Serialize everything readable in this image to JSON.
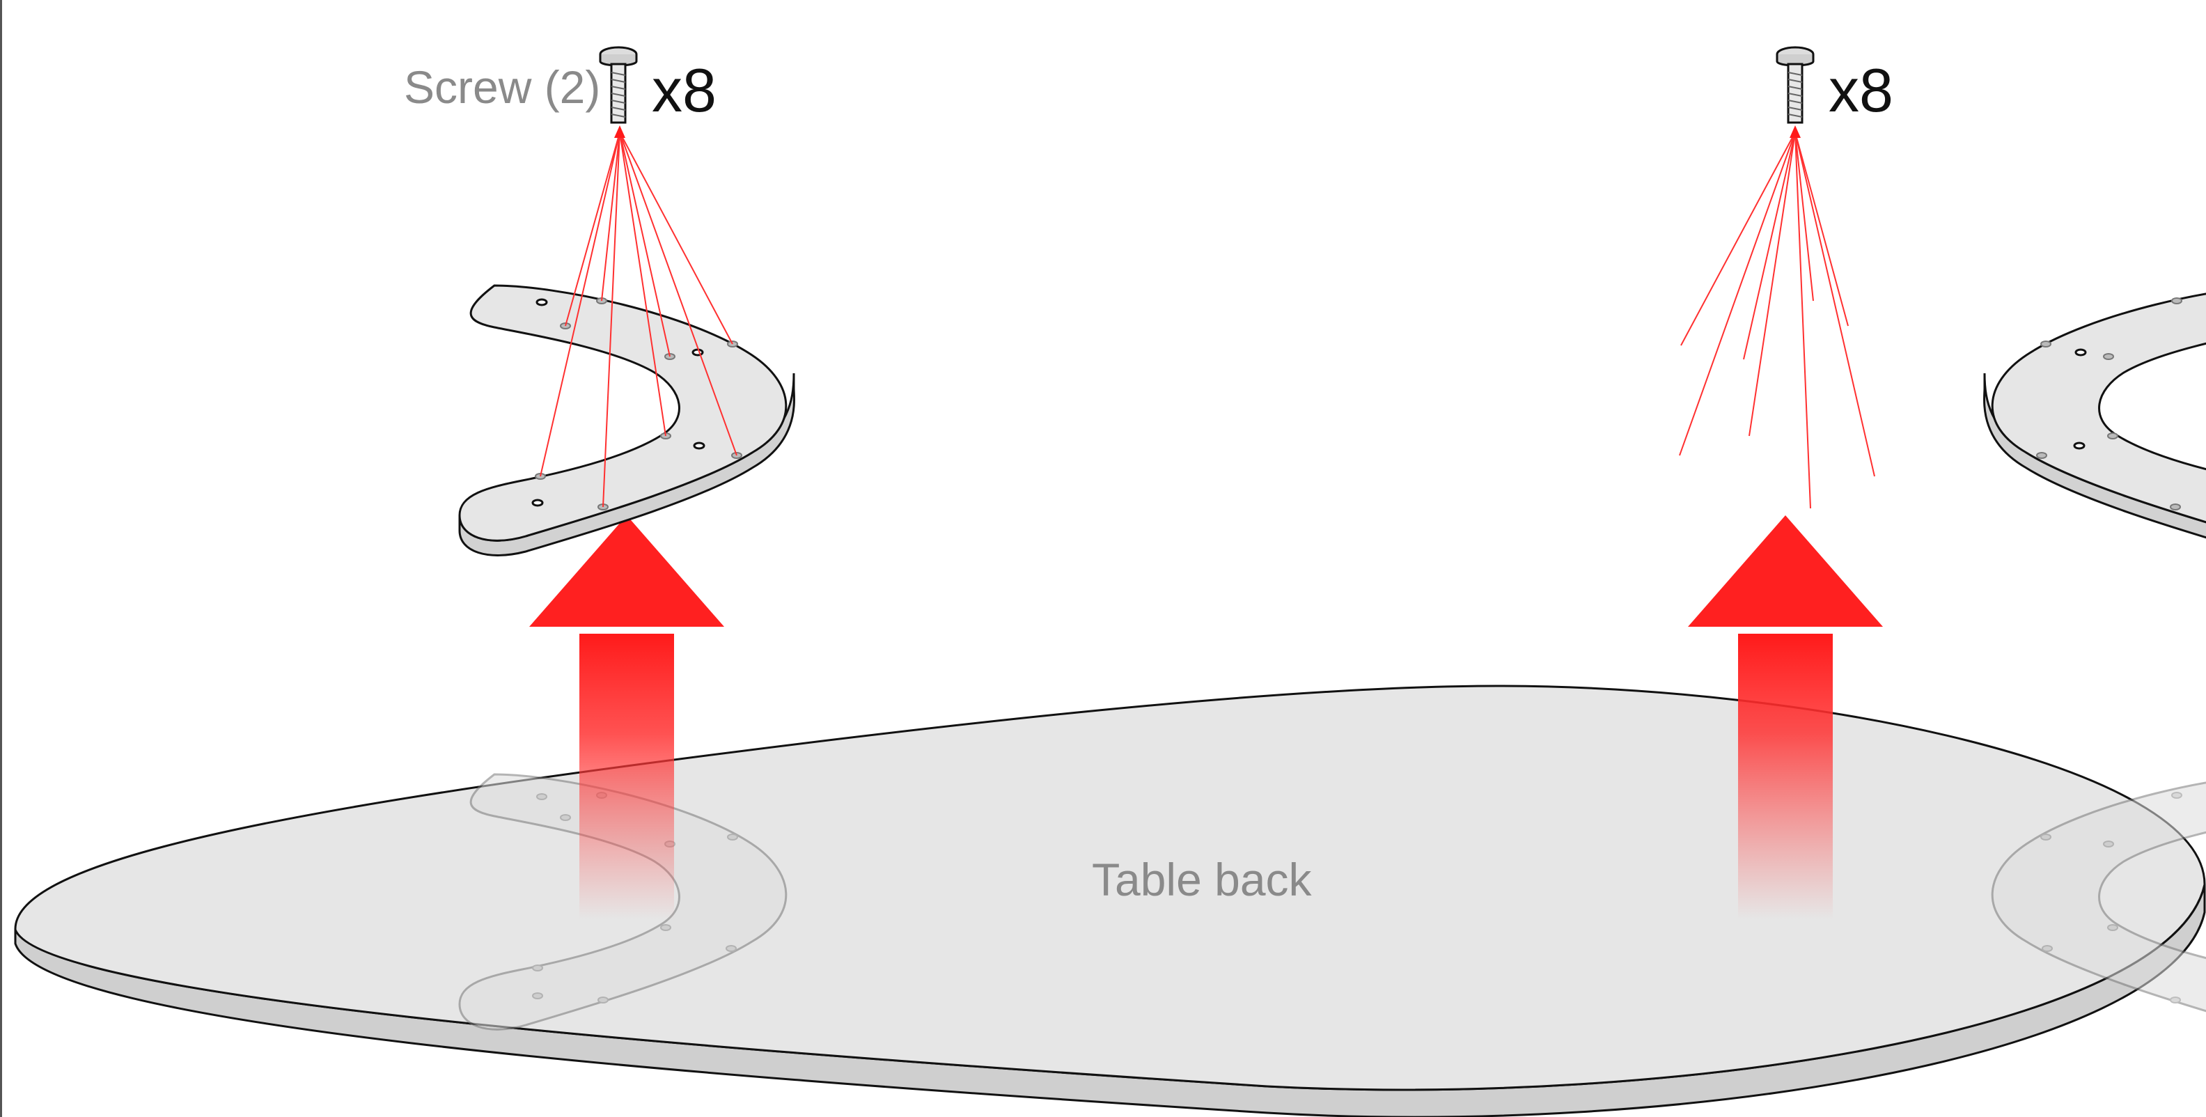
{
  "labels": {
    "screw_name": "Screw (2)",
    "screw_count_left": "x8",
    "screw_count_right": "x8",
    "table_label": "Table back"
  },
  "colors": {
    "accent_red": "#ff1a1a",
    "plate_fill": "#e6e6e6",
    "plate_edge": "#cfcfcf",
    "outline": "#111111",
    "label_gray": "#8a8a8a"
  },
  "icons": {
    "screw": "screw-icon",
    "arrow": "up-arrow-icon"
  }
}
